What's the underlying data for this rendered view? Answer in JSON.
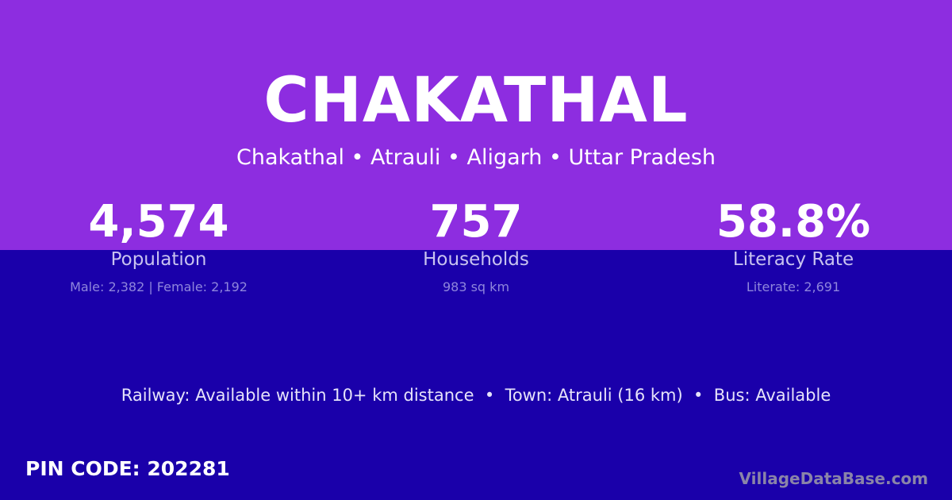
{
  "title": "CHAKATHAL",
  "subtitle": "Chakathal • Atrauli • Aligarh • Uttar Pradesh",
  "stats": [
    {
      "value": "4,574",
      "label": "Population",
      "detail": "Male: 2,382 | Female: 2,192"
    },
    {
      "value": "757",
      "label": "Households",
      "detail": "983 sq km"
    },
    {
      "value": "58.8%",
      "label": "Literacy Rate",
      "detail": "Literate: 2,691"
    }
  ],
  "facts": "Railway: Available within 10+ km distance  •  Town: Atrauli (16 km)  •  Bus: Available",
  "pin": "PIN CODE: 202281",
  "brand": "VillageDataBase.com",
  "colors": {
    "top": "#8d2de0",
    "bottom": "#1a00aa"
  }
}
